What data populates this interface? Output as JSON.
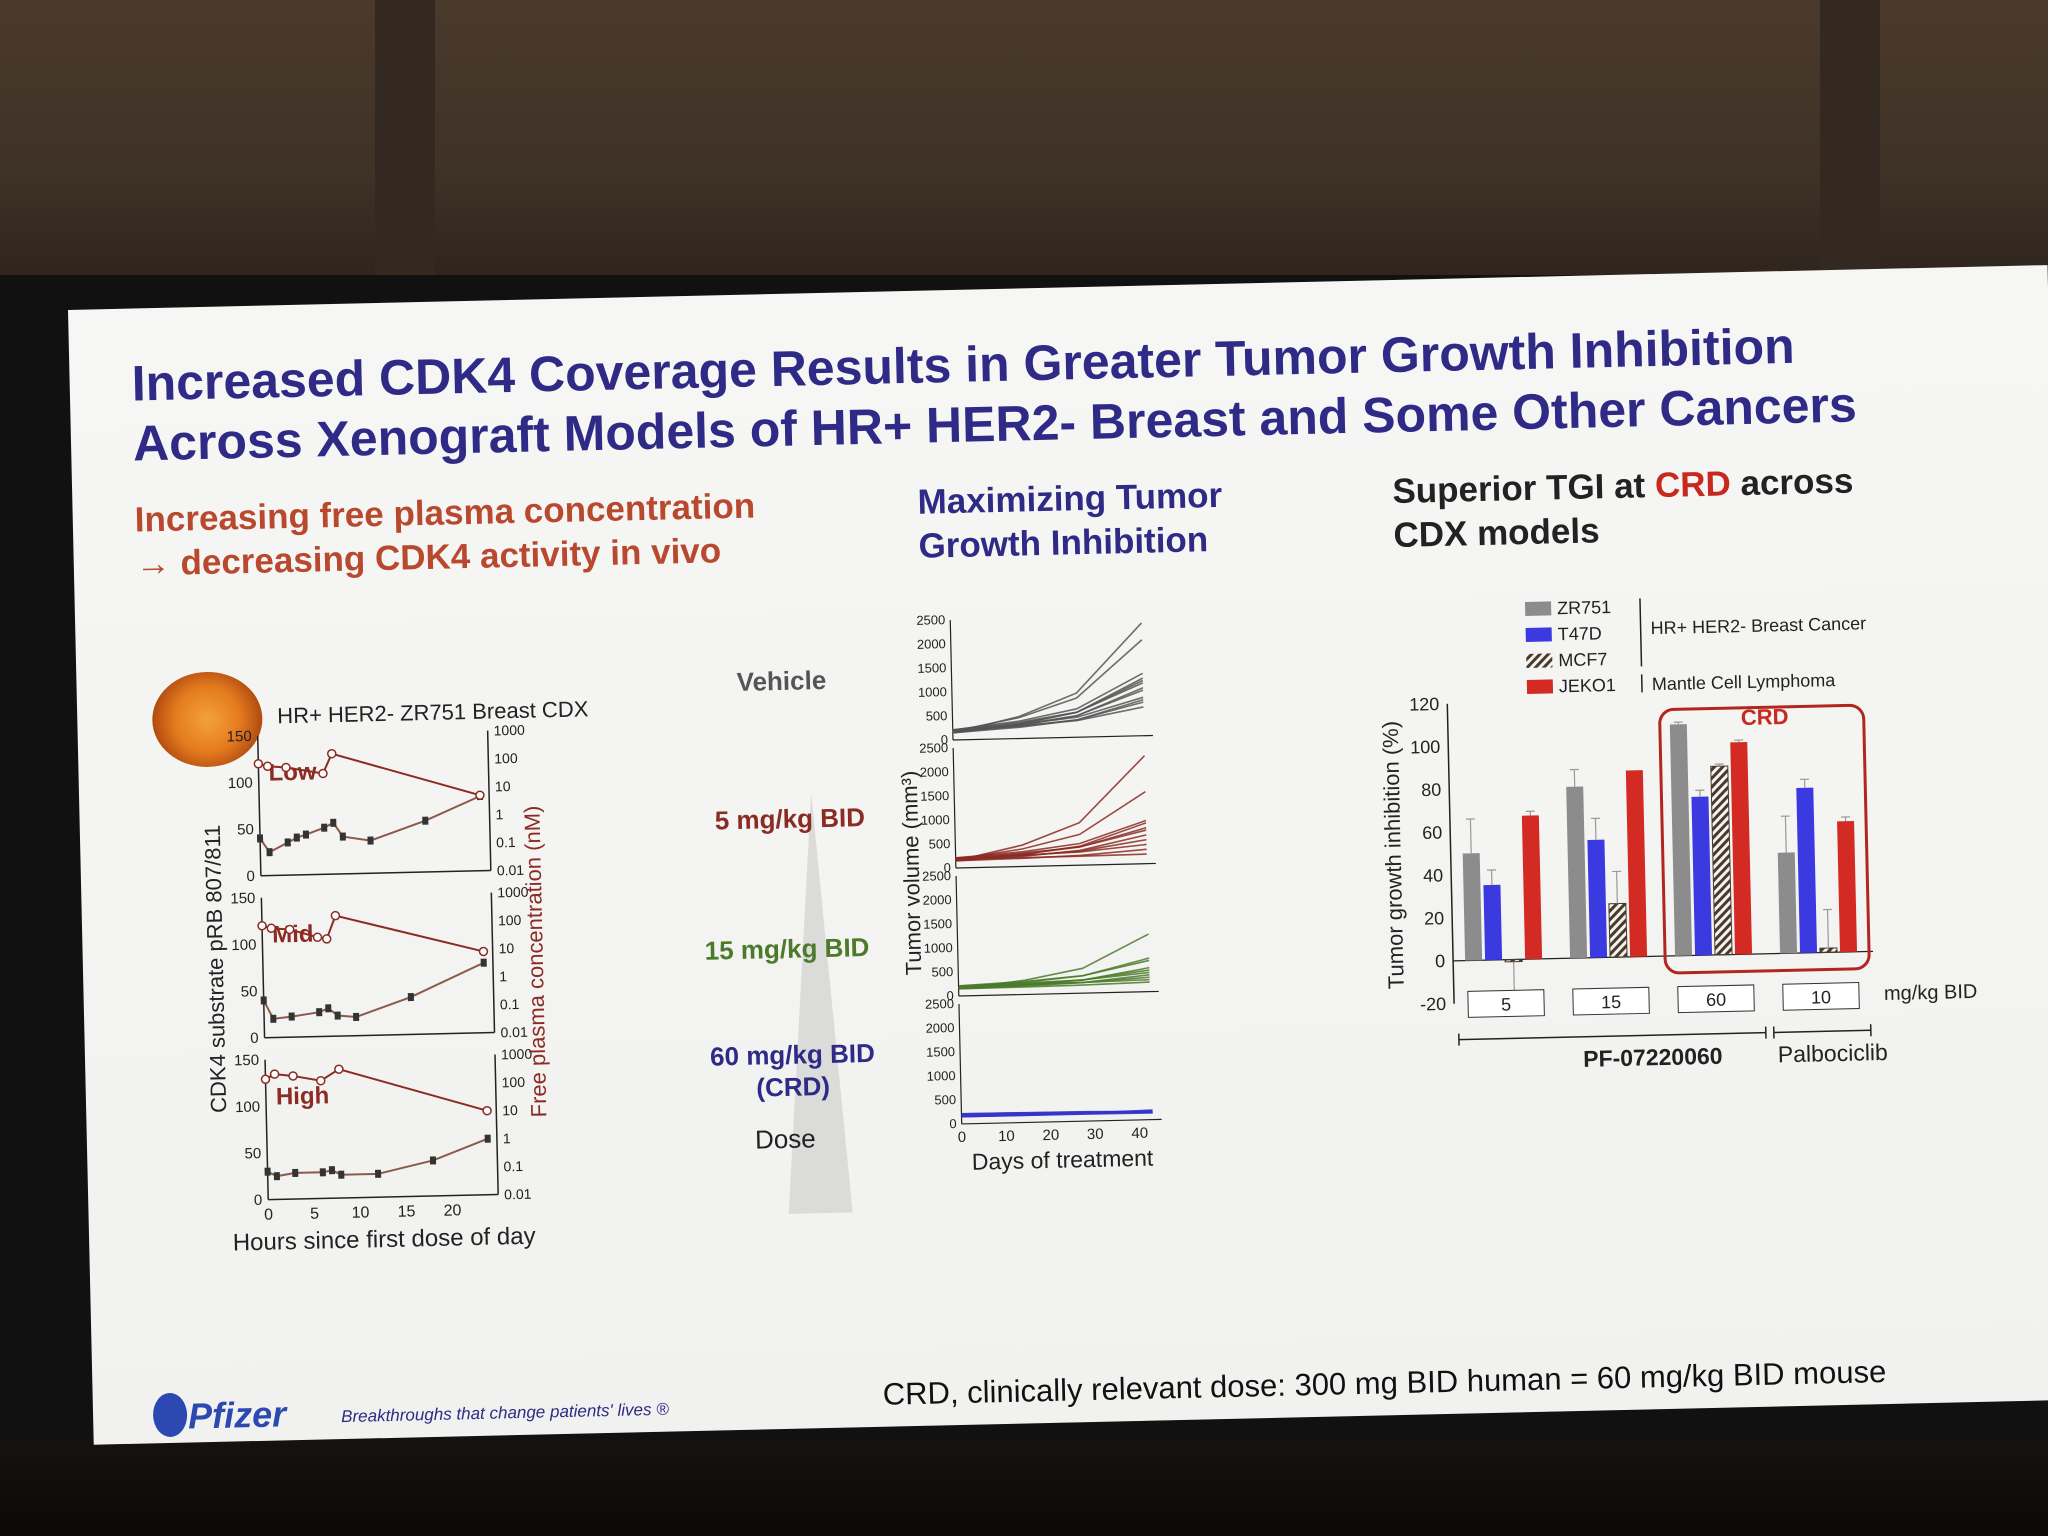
{
  "slide": {
    "title_line1": "Increased CDK4 Coverage Results in Greater Tumor Growth Inhibition",
    "title_line2": "Across Xenograft Models of HR+ HER2- Breast and Some Other Cancers",
    "left_subtitle_1": "Increasing free plasma concentration",
    "left_subtitle_2": "→ decreasing CDK4 activity in vivo",
    "mid_subtitle_1": "Maximizing Tumor",
    "mid_subtitle_2": "Growth Inhibition",
    "right_subtitle_1a": "Superior TGI at ",
    "right_subtitle_1b": "CRD",
    "right_subtitle_1c": " across",
    "right_subtitle_2": "CDX models",
    "model_label": "HR+ HER2- ZR751 Breast CDX",
    "doses": {
      "vehicle": "Vehicle",
      "d5": "5 mg/kg BID",
      "d15": "15 mg/kg BID",
      "d60_line1": "60 mg/kg BID",
      "d60_line2": "(CRD)",
      "dose": "Dose"
    },
    "footer_note": "CRD, clinically relevant dose: 300 mg BID human = 60 mg/kg BID mouse",
    "brand": "Pfizer",
    "tagline": "Breakthroughs that change patients' lives ®",
    "colors": {
      "title": "#2e2a86",
      "left_sub": "#b8492e",
      "crd": "#c8281e"
    }
  },
  "chart_data": [
    {
      "type": "line",
      "panels": [
        "Low",
        "Mid",
        "High"
      ],
      "xlabel": "Hours since first dose of day",
      "ylabel_left": "CDK4 substrate pRB 807/811",
      "ylabel_right": "Free plasma concentration (nM)",
      "x_ticks": [
        0,
        5,
        10,
        15,
        20
      ],
      "left_ticks": [
        0,
        50,
        100,
        150
      ],
      "right_ticks": [
        "0.01",
        "0.1",
        "1",
        "10",
        "100",
        "1000"
      ],
      "xlim": [
        0,
        25
      ],
      "ylim_left": [
        0,
        150
      ],
      "ylim_right_log": [
        0.01,
        1000
      ],
      "series": [
        {
          "panel": "Low",
          "pRB": [
            [
              0,
              40
            ],
            [
              1,
              25
            ],
            [
              3,
              35
            ],
            [
              4,
              40
            ],
            [
              5,
              43
            ],
            [
              7,
              50
            ],
            [
              8,
              55
            ],
            [
              9,
              40
            ],
            [
              12,
              35
            ],
            [
              18,
              55
            ],
            [
              24,
              80
            ]
          ],
          "conc": [
            [
              0,
              100
            ],
            [
              1,
              80
            ],
            [
              3,
              70
            ],
            [
              7,
              40
            ],
            [
              8,
              200
            ],
            [
              24,
              5
            ]
          ]
        },
        {
          "panel": "Mid",
          "pRB": [
            [
              0,
              40
            ],
            [
              1,
              20
            ],
            [
              3,
              22
            ],
            [
              6,
              26
            ],
            [
              7,
              30
            ],
            [
              8,
              22
            ],
            [
              10,
              20
            ],
            [
              16,
              40
            ],
            [
              24,
              75
            ]
          ],
          "conc": [
            [
              0,
              100
            ],
            [
              1,
              80
            ],
            [
              3,
              70
            ],
            [
              6,
              35
            ],
            [
              7,
              30
            ],
            [
              8,
              200
            ],
            [
              24,
              8
            ]
          ]
        },
        {
          "panel": "High",
          "pRB": [
            [
              0,
              30
            ],
            [
              1,
              25
            ],
            [
              3,
              28
            ],
            [
              6,
              28
            ],
            [
              7,
              30
            ],
            [
              8,
              25
            ],
            [
              12,
              25
            ],
            [
              18,
              38
            ],
            [
              24,
              60
            ]
          ],
          "conc": [
            [
              0,
              200
            ],
            [
              1,
              300
            ],
            [
              3,
              250
            ],
            [
              6,
              160
            ],
            [
              8,
              400
            ],
            [
              24,
              10
            ]
          ]
        }
      ]
    },
    {
      "type": "line",
      "xlabel": "Days of treatment",
      "ylabel": "Tumor volume (mm³)",
      "x_ticks": [
        0,
        10,
        20,
        30,
        40
      ],
      "y_ticks": [
        0,
        500,
        1000,
        1500,
        2000,
        2500
      ],
      "xlim": [
        0,
        45
      ],
      "ylim": [
        0,
        2500
      ],
      "panels": [
        {
          "group": "Vehicle",
          "color": "#555555",
          "endpoints": [
            2350,
            2000,
            1300,
            1200,
            1150,
            1100,
            1000,
            950,
            800,
            750,
            700,
            600
          ]
        },
        {
          "group": "5 mg/kg BID",
          "color": "#8b2b23",
          "endpoints": [
            2250,
            1500,
            900,
            850,
            750,
            700,
            600,
            500,
            400,
            300,
            200
          ]
        },
        {
          "group": "15 mg/kg BID",
          "color": "#4b7a2b",
          "endpoints": [
            1200,
            700,
            650,
            500,
            450,
            400,
            350,
            300,
            250,
            200
          ]
        },
        {
          "group": "60 mg/kg BID (CRD)",
          "color": "#3434c8",
          "endpoints": [
            200,
            180,
            170,
            160,
            150,
            150,
            140
          ]
        }
      ]
    },
    {
      "type": "bar",
      "ylabel": "Tumor growth inhibition (%)",
      "ylim": [
        -20,
        120
      ],
      "y_ticks": [
        -20,
        0,
        20,
        40,
        60,
        80,
        100,
        120
      ],
      "unit_label": "mg/kg BID",
      "groups": [
        "5",
        "15",
        "60",
        "10"
      ],
      "group_brackets": [
        {
          "label": "PF-07220060",
          "groups": [
            "5",
            "15",
            "60"
          ]
        },
        {
          "label": "Palbociclib",
          "groups": [
            "10"
          ]
        }
      ],
      "crd_label": "CRD",
      "legend": {
        "hr_label": "HR+ HER2- Breast Cancer",
        "mcl_label": "Mantle Cell Lymphoma"
      },
      "series": [
        {
          "name": "ZR751",
          "color": "#8c8c8c",
          "values": [
            50,
            80,
            108,
            47
          ],
          "errors": [
            16,
            8,
            1,
            17
          ]
        },
        {
          "name": "T47D",
          "color": "#3a3ae0",
          "values": [
            35,
            55,
            74,
            77
          ],
          "errors": [
            7,
            10,
            3,
            4
          ]
        },
        {
          "name": "MCF7",
          "color": "#4a3a2c",
          "values": [
            -1,
            25,
            88,
            2
          ],
          "errors": [
            15,
            15,
            1,
            18
          ]
        },
        {
          "name": "JEKO1",
          "color": "#d42a24",
          "values": [
            67,
            87,
            99,
            61
          ],
          "errors": [
            2,
            0,
            1,
            2
          ]
        }
      ]
    }
  ]
}
